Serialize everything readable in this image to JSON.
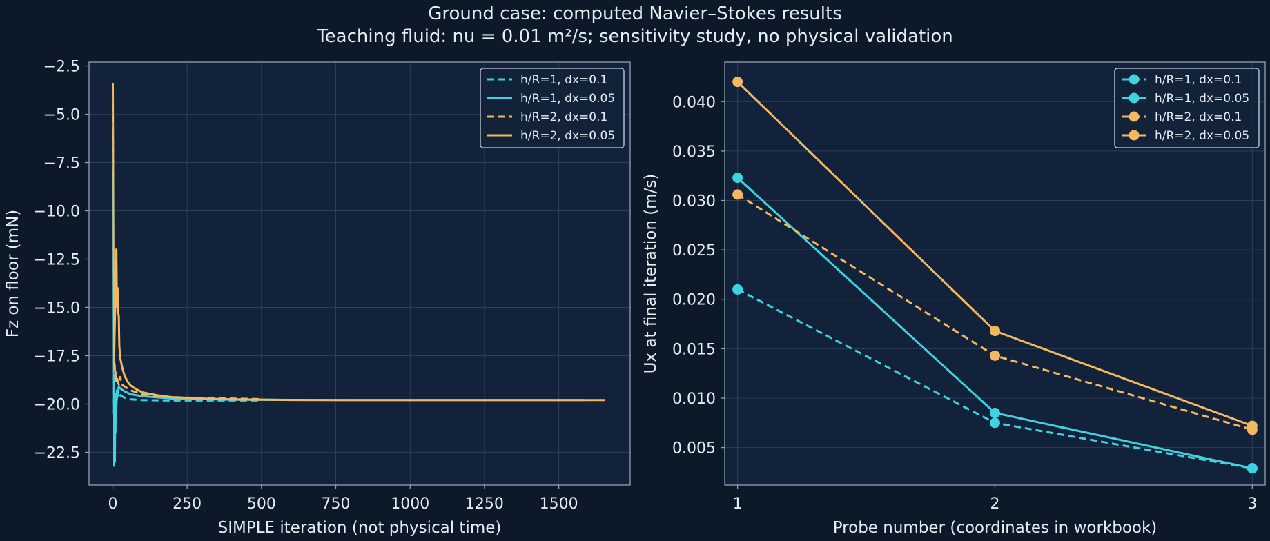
{
  "figure": {
    "title": "Ground case: computed Navier–Stokes results",
    "subtitle": "Teaching fluid: nu = 0.01 m²/s; sensitivity study, no physical validation",
    "colors": {
      "background": "#0c1929",
      "panel": "#12223a",
      "grid": "#2b3f58",
      "spine": "#8fa3b8",
      "text": "#e6ecf2",
      "cyan": "#3ed3e0",
      "orange": "#f4b860"
    }
  },
  "chart_data": [
    {
      "type": "line",
      "xlabel": "SIMPLE iteration (not physical time)",
      "ylabel": "Fz on floor (mN)",
      "xlim": [
        -80,
        1740
      ],
      "ylim": [
        -24.2,
        -2.3
      ],
      "xticks": [
        0,
        250,
        500,
        750,
        1000,
        1250,
        1500
      ],
      "xtick_labels": [
        "0",
        "250",
        "500",
        "750",
        "1000",
        "1250",
        "1500"
      ],
      "yticks": [
        -22.5,
        -20.0,
        -17.5,
        -15.0,
        -12.5,
        -10.0,
        -7.5,
        -5.0,
        -2.5
      ],
      "ytick_labels": [
        "−22.5",
        "−20.0",
        "−17.5",
        "−15.0",
        "−12.5",
        "−10.0",
        "−7.5",
        "−5.0",
        "−2.5"
      ],
      "grid": true,
      "legend_position": "top-right",
      "series": [
        {
          "name": "h/R=1, dx=0.1",
          "color": "#3ed3e0",
          "dash": "dashed",
          "x": [
            0,
            1,
            2,
            3,
            4,
            5,
            6,
            7,
            8,
            10,
            12,
            15,
            20,
            30,
            50,
            100,
            200,
            300,
            400,
            500
          ],
          "y": [
            -6.0,
            -14.0,
            -20.5,
            -18.5,
            -21.0,
            -19.5,
            -20.8,
            -19.8,
            -20.3,
            -19.7,
            -19.9,
            -19.6,
            -19.5,
            -19.6,
            -19.75,
            -19.8,
            -19.82,
            -19.82,
            -19.82,
            -19.82
          ]
        },
        {
          "name": "h/R=1, dx=0.05",
          "color": "#3ed3e0",
          "dash": "solid",
          "x": [
            0,
            1,
            2,
            3,
            4,
            5,
            6,
            7,
            8,
            9,
            10,
            12,
            14,
            16,
            20,
            25,
            30,
            40,
            60,
            100,
            200,
            400,
            800,
            1200,
            1590
          ],
          "y": [
            -8.0,
            -16.0,
            -20.5,
            -19.0,
            -23.2,
            -21.0,
            -22.0,
            -23.0,
            -20.5,
            -21.5,
            -19.5,
            -20.2,
            -19.3,
            -19.6,
            -19.1,
            -19.2,
            -19.25,
            -19.35,
            -19.5,
            -19.6,
            -19.72,
            -19.78,
            -19.8,
            -19.8,
            -19.8
          ]
        },
        {
          "name": "h/R=2, dx=0.1",
          "color": "#f4b860",
          "dash": "dashed",
          "x": [
            0,
            1,
            2,
            3,
            4,
            5,
            6,
            8,
            10,
            12,
            15,
            20,
            25,
            30,
            40,
            60,
            100,
            200,
            300,
            400,
            500
          ],
          "y": [
            -4.5,
            -9.0,
            -14.0,
            -17.0,
            -16.5,
            -18.0,
            -17.8,
            -18.6,
            -18.3,
            -18.9,
            -18.7,
            -19.0,
            -18.6,
            -19.0,
            -19.1,
            -19.3,
            -19.5,
            -19.65,
            -19.7,
            -19.72,
            -19.75
          ]
        },
        {
          "name": "h/R=2, dx=0.05",
          "color": "#f4b860",
          "dash": "solid",
          "x": [
            0,
            2,
            4,
            6,
            8,
            10,
            12,
            14,
            16,
            18,
            20,
            22,
            25,
            30,
            35,
            40,
            50,
            60,
            80,
            100,
            150,
            200,
            300,
            400,
            600,
            800,
            1000,
            1200,
            1400,
            1655
          ],
          "y": [
            -3.4,
            -12.0,
            -18.0,
            -16.5,
            -15.0,
            -13.5,
            -12.0,
            -15.0,
            -14.0,
            -15.3,
            -15.4,
            -17.0,
            -17.6,
            -18.0,
            -18.3,
            -18.55,
            -18.85,
            -19.05,
            -19.25,
            -19.4,
            -19.55,
            -19.65,
            -19.72,
            -19.76,
            -19.79,
            -19.8,
            -19.8,
            -19.8,
            -19.8,
            -19.8
          ]
        }
      ]
    },
    {
      "type": "line",
      "xlabel": "Probe number (coordinates in workbook)",
      "ylabel": "Ux at final iteration (m/s)",
      "xlim": [
        0.95,
        3.05
      ],
      "ylim": [
        0.0012,
        0.044
      ],
      "xticks": [
        1,
        2,
        3
      ],
      "xtick_labels": [
        "1",
        "2",
        "3"
      ],
      "yticks": [
        0.005,
        0.01,
        0.015,
        0.02,
        0.025,
        0.03,
        0.035,
        0.04
      ],
      "ytick_labels": [
        "0.005",
        "0.010",
        "0.015",
        "0.020",
        "0.025",
        "0.030",
        "0.035",
        "0.040"
      ],
      "grid": true,
      "legend_position": "top-right",
      "series": [
        {
          "name": "h/R=1, dx=0.1",
          "color": "#3ed3e0",
          "dash": "dashed",
          "x": [
            1,
            2,
            3
          ],
          "y": [
            0.021,
            0.0075,
            0.0029
          ]
        },
        {
          "name": "h/R=1, dx=0.05",
          "color": "#3ed3e0",
          "dash": "solid",
          "x": [
            1,
            2,
            3
          ],
          "y": [
            0.0323,
            0.0085,
            0.0029
          ]
        },
        {
          "name": "h/R=2, dx=0.1",
          "color": "#f4b860",
          "dash": "dashed",
          "x": [
            1,
            2,
            3
          ],
          "y": [
            0.0306,
            0.0143,
            0.0068
          ]
        },
        {
          "name": "h/R=2, dx=0.05",
          "color": "#f4b860",
          "dash": "solid",
          "x": [
            1,
            2,
            3
          ],
          "y": [
            0.042,
            0.0168,
            0.0072
          ]
        }
      ]
    }
  ]
}
